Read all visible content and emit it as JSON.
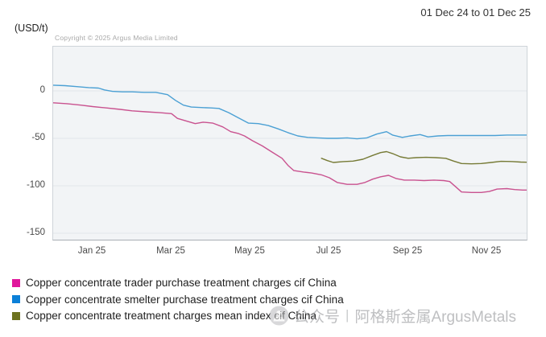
{
  "header": {
    "date_range": "01 Dec 24 to 01 Dec 25",
    "unit_label": "(USD/t)",
    "copyright": "Copyright © 2025 Argus Media Limited"
  },
  "watermark": {
    "icon": "wechat-official-account-icon",
    "prefix": "公众号",
    "separator": "|",
    "name": "阿格斯金属ArgusMetals"
  },
  "chart_data": {
    "type": "line",
    "title": "",
    "xlabel": "",
    "ylabel": "(USD/t)",
    "x_unit": "months from 01 Dec 24",
    "x_range_label": "01 Dec 24 to 01 Dec 25",
    "xlim": [
      0,
      12
    ],
    "ylim_top": 46,
    "ylim_bottom": -157,
    "grid": true,
    "legend_position": "bottom-left",
    "x_axis": {
      "tick_labels": [
        "Jan 25",
        "Mar 25",
        "May 25",
        "Jul 25",
        "Sep 25",
        "Nov 25"
      ],
      "tick_month_offsets": [
        1,
        3,
        5,
        7,
        9,
        11
      ]
    },
    "y_axis": {
      "tick_labels": [
        "0",
        "-50",
        "-100",
        "-150"
      ],
      "tick_values": [
        0,
        -50,
        -100,
        -150
      ]
    },
    "series": [
      {
        "name": "Copper concentrate trader purchase treatment charges cif China",
        "color": "#c9528f",
        "swatch_color": "#e0189c",
        "points": [
          [
            0,
            -12.5
          ],
          [
            0.35,
            -13.5
          ],
          [
            0.7,
            -15
          ],
          [
            1.0,
            -16.5
          ],
          [
            1.35,
            -18
          ],
          [
            1.7,
            -19.5
          ],
          [
            2.0,
            -21
          ],
          [
            2.35,
            -22
          ],
          [
            2.7,
            -23
          ],
          [
            3.0,
            -24
          ],
          [
            3.15,
            -29
          ],
          [
            3.4,
            -32
          ],
          [
            3.6,
            -34.5
          ],
          [
            3.8,
            -33
          ],
          [
            4.05,
            -34
          ],
          [
            4.3,
            -38
          ],
          [
            4.5,
            -43
          ],
          [
            4.7,
            -45
          ],
          [
            4.85,
            -47.5
          ],
          [
            5.05,
            -52.5
          ],
          [
            5.3,
            -58
          ],
          [
            5.55,
            -64.5
          ],
          [
            5.8,
            -71
          ],
          [
            5.95,
            -78.5
          ],
          [
            6.1,
            -84
          ],
          [
            6.35,
            -85.5
          ],
          [
            6.55,
            -86.5
          ],
          [
            6.8,
            -88.5
          ],
          [
            7.0,
            -91.5
          ],
          [
            7.2,
            -96.5
          ],
          [
            7.45,
            -98.5
          ],
          [
            7.7,
            -98.5
          ],
          [
            7.9,
            -96.5
          ],
          [
            8.1,
            -93
          ],
          [
            8.3,
            -90.5
          ],
          [
            8.5,
            -89
          ],
          [
            8.7,
            -92.5
          ],
          [
            8.9,
            -94
          ],
          [
            9.15,
            -94
          ],
          [
            9.4,
            -94.5
          ],
          [
            9.65,
            -94
          ],
          [
            9.9,
            -94.5
          ],
          [
            10.05,
            -95.5
          ],
          [
            10.2,
            -101
          ],
          [
            10.35,
            -106.5
          ],
          [
            10.6,
            -107
          ],
          [
            10.85,
            -107
          ],
          [
            11.05,
            -106
          ],
          [
            11.25,
            -103.5
          ],
          [
            11.5,
            -103
          ],
          [
            11.7,
            -104
          ],
          [
            11.9,
            -104.5
          ],
          [
            12,
            -104.5
          ]
        ]
      },
      {
        "name": "Copper concentrate smelter purchase treatment charges cif China",
        "color": "#4ba0d4",
        "swatch_color": "#0b80d8",
        "points": [
          [
            0,
            6
          ],
          [
            0.3,
            5.5
          ],
          [
            0.6,
            4.5
          ],
          [
            0.9,
            3.5
          ],
          [
            1.15,
            3
          ],
          [
            1.3,
            1
          ],
          [
            1.5,
            -0.5
          ],
          [
            1.75,
            -1
          ],
          [
            2.0,
            -1
          ],
          [
            2.3,
            -1.5
          ],
          [
            2.6,
            -1.5
          ],
          [
            2.9,
            -4
          ],
          [
            3.1,
            -10
          ],
          [
            3.3,
            -15
          ],
          [
            3.5,
            -17
          ],
          [
            3.75,
            -17.5
          ],
          [
            4.0,
            -18
          ],
          [
            4.2,
            -18.5
          ],
          [
            4.45,
            -23
          ],
          [
            4.7,
            -28.5
          ],
          [
            4.95,
            -34
          ],
          [
            5.2,
            -34.5
          ],
          [
            5.45,
            -36.5
          ],
          [
            5.7,
            -40
          ],
          [
            5.95,
            -44
          ],
          [
            6.2,
            -47.5
          ],
          [
            6.45,
            -49
          ],
          [
            6.7,
            -49.5
          ],
          [
            6.95,
            -50
          ],
          [
            7.2,
            -50
          ],
          [
            7.45,
            -49.5
          ],
          [
            7.7,
            -50.5
          ],
          [
            7.95,
            -49.5
          ],
          [
            8.2,
            -45.5
          ],
          [
            8.45,
            -43
          ],
          [
            8.6,
            -46.5
          ],
          [
            8.85,
            -49
          ],
          [
            9.05,
            -47.5
          ],
          [
            9.3,
            -46
          ],
          [
            9.5,
            -48.5
          ],
          [
            9.75,
            -47.5
          ],
          [
            10.0,
            -47
          ],
          [
            10.3,
            -47
          ],
          [
            10.6,
            -47
          ],
          [
            10.9,
            -47
          ],
          [
            11.2,
            -47
          ],
          [
            11.5,
            -46.5
          ],
          [
            11.75,
            -46.5
          ],
          [
            12,
            -46.5
          ]
        ]
      },
      {
        "name": "Copper concentrate treatment charges mean index cif China",
        "color": "#767a35",
        "swatch_color": "#6d721f",
        "points": [
          [
            6.8,
            -71
          ],
          [
            6.95,
            -73.5
          ],
          [
            7.1,
            -75.4
          ],
          [
            7.35,
            -74.5
          ],
          [
            7.6,
            -74
          ],
          [
            7.85,
            -72
          ],
          [
            8.1,
            -68
          ],
          [
            8.3,
            -65
          ],
          [
            8.45,
            -64
          ],
          [
            8.6,
            -66
          ],
          [
            8.8,
            -69.5
          ],
          [
            9.0,
            -71
          ],
          [
            9.2,
            -70.3
          ],
          [
            9.45,
            -70
          ],
          [
            9.7,
            -70.3
          ],
          [
            9.95,
            -71
          ],
          [
            10.15,
            -74
          ],
          [
            10.35,
            -76.5
          ],
          [
            10.6,
            -76.9
          ],
          [
            10.85,
            -76.5
          ],
          [
            11.1,
            -75.4
          ],
          [
            11.35,
            -74.2
          ],
          [
            11.6,
            -74.4
          ],
          [
            11.85,
            -75
          ],
          [
            12,
            -75.2
          ]
        ]
      }
    ]
  }
}
